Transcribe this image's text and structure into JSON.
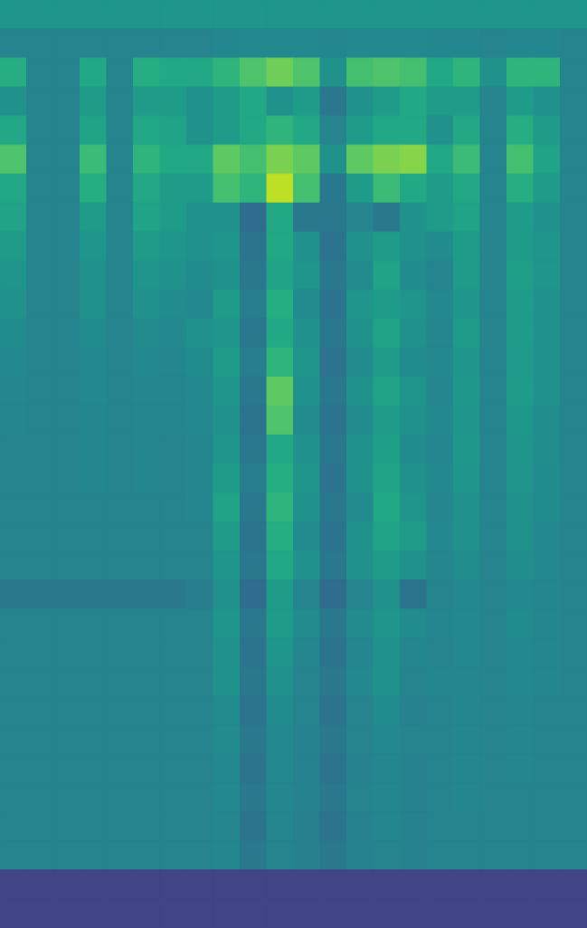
{
  "chart_data": {
    "type": "heatmap",
    "color": "viridis",
    "tick_labels": false,
    "zlim": [
      0,
      1
    ],
    "z": [
      [
        0.52,
        0.52,
        0.52,
        0.52,
        0.52,
        0.52,
        0.52,
        0.52,
        0.52,
        0.52,
        0.52,
        0.52,
        0.52,
        0.52,
        0.52,
        0.52,
        0.52,
        0.52,
        0.52,
        0.52,
        0.52,
        0.52
      ],
      [
        0.45,
        0.45,
        0.45,
        0.45,
        0.45,
        0.45,
        0.45,
        0.45,
        0.46,
        0.47,
        0.47,
        0.47,
        0.46,
        0.47,
        0.47,
        0.47,
        0.46,
        0.46,
        0.45,
        0.46,
        0.46,
        0.45
      ],
      [
        0.62,
        0.45,
        0.45,
        0.6,
        0.45,
        0.62,
        0.6,
        0.6,
        0.65,
        0.72,
        0.78,
        0.72,
        0.5,
        0.7,
        0.72,
        0.7,
        0.6,
        0.65,
        0.5,
        0.65,
        0.65,
        0.45
      ],
      [
        0.5,
        0.45,
        0.45,
        0.55,
        0.45,
        0.55,
        0.55,
        0.5,
        0.55,
        0.6,
        0.5,
        0.55,
        0.4,
        0.5,
        0.55,
        0.6,
        0.55,
        0.55,
        0.45,
        0.55,
        0.5,
        0.45
      ],
      [
        0.6,
        0.45,
        0.45,
        0.58,
        0.45,
        0.6,
        0.58,
        0.5,
        0.55,
        0.6,
        0.65,
        0.6,
        0.45,
        0.55,
        0.6,
        0.6,
        0.5,
        0.6,
        0.45,
        0.62,
        0.55,
        0.45
      ],
      [
        0.72,
        0.45,
        0.45,
        0.68,
        0.45,
        0.65,
        0.6,
        0.6,
        0.75,
        0.7,
        0.8,
        0.75,
        0.5,
        0.75,
        0.8,
        0.82,
        0.6,
        0.68,
        0.45,
        0.7,
        0.58,
        0.45
      ],
      [
        0.6,
        0.45,
        0.45,
        0.62,
        0.45,
        0.6,
        0.55,
        0.55,
        0.7,
        0.65,
        0.9,
        0.7,
        0.4,
        0.55,
        0.68,
        0.6,
        0.55,
        0.6,
        0.45,
        0.62,
        0.55,
        0.45
      ],
      [
        0.58,
        0.45,
        0.45,
        0.55,
        0.45,
        0.58,
        0.55,
        0.5,
        0.5,
        0.35,
        0.6,
        0.4,
        0.4,
        0.45,
        0.4,
        0.5,
        0.55,
        0.58,
        0.45,
        0.55,
        0.5,
        0.45
      ],
      [
        0.55,
        0.45,
        0.45,
        0.52,
        0.45,
        0.55,
        0.52,
        0.5,
        0.52,
        0.38,
        0.6,
        0.5,
        0.38,
        0.5,
        0.55,
        0.5,
        0.48,
        0.55,
        0.45,
        0.55,
        0.52,
        0.45
      ],
      [
        0.52,
        0.45,
        0.45,
        0.5,
        0.45,
        0.52,
        0.5,
        0.48,
        0.5,
        0.4,
        0.58,
        0.52,
        0.4,
        0.48,
        0.58,
        0.48,
        0.45,
        0.55,
        0.45,
        0.56,
        0.52,
        0.45
      ],
      [
        0.5,
        0.45,
        0.45,
        0.5,
        0.45,
        0.5,
        0.48,
        0.47,
        0.55,
        0.42,
        0.62,
        0.48,
        0.38,
        0.52,
        0.55,
        0.52,
        0.47,
        0.52,
        0.45,
        0.55,
        0.5,
        0.45
      ],
      [
        0.48,
        0.45,
        0.45,
        0.48,
        0.45,
        0.48,
        0.47,
        0.5,
        0.52,
        0.4,
        0.6,
        0.5,
        0.4,
        0.5,
        0.58,
        0.5,
        0.46,
        0.55,
        0.45,
        0.55,
        0.5,
        0.45
      ],
      [
        0.47,
        0.45,
        0.45,
        0.47,
        0.45,
        0.47,
        0.46,
        0.48,
        0.55,
        0.42,
        0.65,
        0.52,
        0.38,
        0.48,
        0.55,
        0.48,
        0.47,
        0.52,
        0.45,
        0.54,
        0.5,
        0.45
      ],
      [
        0.46,
        0.45,
        0.45,
        0.47,
        0.45,
        0.46,
        0.46,
        0.47,
        0.52,
        0.4,
        0.75,
        0.5,
        0.4,
        0.5,
        0.58,
        0.52,
        0.46,
        0.53,
        0.45,
        0.55,
        0.5,
        0.45
      ],
      [
        0.46,
        0.45,
        0.45,
        0.46,
        0.45,
        0.46,
        0.46,
        0.47,
        0.5,
        0.38,
        0.72,
        0.48,
        0.38,
        0.48,
        0.55,
        0.5,
        0.47,
        0.52,
        0.45,
        0.53,
        0.49,
        0.45
      ],
      [
        0.45,
        0.45,
        0.45,
        0.46,
        0.45,
        0.46,
        0.45,
        0.46,
        0.52,
        0.4,
        0.6,
        0.5,
        0.4,
        0.5,
        0.56,
        0.48,
        0.46,
        0.53,
        0.45,
        0.52,
        0.49,
        0.45
      ],
      [
        0.45,
        0.45,
        0.45,
        0.46,
        0.45,
        0.46,
        0.45,
        0.46,
        0.55,
        0.42,
        0.62,
        0.52,
        0.38,
        0.5,
        0.58,
        0.5,
        0.47,
        0.52,
        0.45,
        0.52,
        0.48,
        0.45
      ],
      [
        0.45,
        0.45,
        0.45,
        0.45,
        0.45,
        0.45,
        0.45,
        0.46,
        0.58,
        0.4,
        0.65,
        0.5,
        0.4,
        0.48,
        0.6,
        0.52,
        0.46,
        0.5,
        0.45,
        0.5,
        0.48,
        0.45
      ],
      [
        0.45,
        0.45,
        0.45,
        0.45,
        0.45,
        0.45,
        0.45,
        0.45,
        0.55,
        0.38,
        0.62,
        0.48,
        0.38,
        0.5,
        0.58,
        0.55,
        0.47,
        0.5,
        0.45,
        0.5,
        0.47,
        0.45
      ],
      [
        0.45,
        0.45,
        0.45,
        0.45,
        0.45,
        0.45,
        0.45,
        0.45,
        0.52,
        0.4,
        0.6,
        0.5,
        0.4,
        0.5,
        0.55,
        0.5,
        0.46,
        0.49,
        0.45,
        0.49,
        0.47,
        0.45
      ],
      [
        0.4,
        0.4,
        0.4,
        0.4,
        0.4,
        0.4,
        0.4,
        0.42,
        0.5,
        0.35,
        0.55,
        0.45,
        0.35,
        0.45,
        0.5,
        0.38,
        0.45,
        0.47,
        0.45,
        0.47,
        0.46,
        0.45
      ],
      [
        0.45,
        0.45,
        0.45,
        0.45,
        0.45,
        0.45,
        0.45,
        0.45,
        0.52,
        0.4,
        0.55,
        0.48,
        0.4,
        0.48,
        0.52,
        0.48,
        0.46,
        0.47,
        0.45,
        0.48,
        0.46,
        0.45
      ],
      [
        0.45,
        0.45,
        0.45,
        0.45,
        0.45,
        0.45,
        0.45,
        0.45,
        0.5,
        0.38,
        0.52,
        0.46,
        0.38,
        0.46,
        0.5,
        0.46,
        0.45,
        0.47,
        0.45,
        0.47,
        0.46,
        0.45
      ],
      [
        0.45,
        0.45,
        0.45,
        0.45,
        0.45,
        0.45,
        0.45,
        0.45,
        0.5,
        0.4,
        0.5,
        0.45,
        0.4,
        0.47,
        0.5,
        0.45,
        0.46,
        0.46,
        0.45,
        0.47,
        0.46,
        0.45
      ],
      [
        0.45,
        0.45,
        0.45,
        0.45,
        0.45,
        0.45,
        0.45,
        0.45,
        0.48,
        0.38,
        0.48,
        0.45,
        0.38,
        0.45,
        0.48,
        0.44,
        0.45,
        0.46,
        0.45,
        0.46,
        0.45,
        0.45
      ],
      [
        0.45,
        0.45,
        0.45,
        0.45,
        0.45,
        0.45,
        0.45,
        0.45,
        0.48,
        0.4,
        0.47,
        0.44,
        0.4,
        0.45,
        0.47,
        0.45,
        0.45,
        0.46,
        0.45,
        0.46,
        0.45,
        0.45
      ],
      [
        0.45,
        0.45,
        0.45,
        0.45,
        0.45,
        0.45,
        0.45,
        0.45,
        0.47,
        0.38,
        0.47,
        0.44,
        0.38,
        0.44,
        0.46,
        0.44,
        0.45,
        0.46,
        0.45,
        0.46,
        0.45,
        0.45
      ],
      [
        0.45,
        0.45,
        0.45,
        0.45,
        0.45,
        0.45,
        0.45,
        0.45,
        0.47,
        0.4,
        0.46,
        0.44,
        0.4,
        0.45,
        0.46,
        0.44,
        0.45,
        0.46,
        0.45,
        0.45,
        0.45,
        0.45
      ],
      [
        0.45,
        0.45,
        0.45,
        0.45,
        0.45,
        0.45,
        0.45,
        0.45,
        0.46,
        0.38,
        0.46,
        0.43,
        0.38,
        0.44,
        0.46,
        0.44,
        0.45,
        0.45,
        0.45,
        0.45,
        0.45,
        0.45
      ],
      [
        0.45,
        0.45,
        0.45,
        0.45,
        0.45,
        0.45,
        0.45,
        0.45,
        0.46,
        0.4,
        0.45,
        0.43,
        0.4,
        0.44,
        0.45,
        0.44,
        0.45,
        0.45,
        0.45,
        0.45,
        0.45,
        0.45
      ],
      [
        0.2,
        0.2,
        0.2,
        0.2,
        0.2,
        0.2,
        0.2,
        0.2,
        0.2,
        0.2,
        0.2,
        0.2,
        0.2,
        0.2,
        0.2,
        0.2,
        0.2,
        0.2,
        0.2,
        0.2,
        0.2,
        0.2
      ],
      [
        0.2,
        0.2,
        0.2,
        0.2,
        0.2,
        0.2,
        0.2,
        0.2,
        0.2,
        0.2,
        0.2,
        0.2,
        0.2,
        0.2,
        0.2,
        0.2,
        0.2,
        0.2,
        0.2,
        0.2,
        0.2,
        0.2
      ]
    ]
  }
}
